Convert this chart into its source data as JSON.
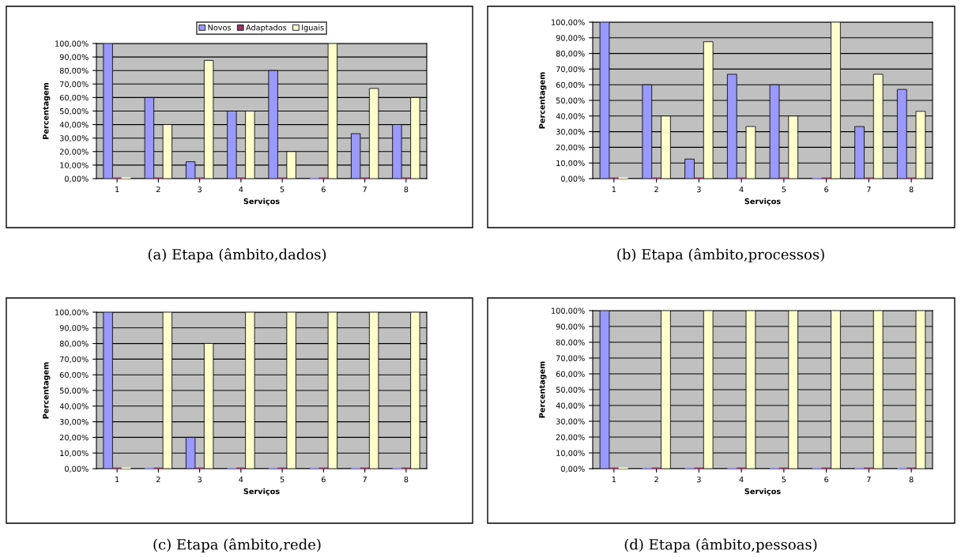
{
  "chart_data": [
    {
      "type": "bar",
      "categories": [
        "1",
        "2",
        "3",
        "4",
        "5",
        "6",
        "7",
        "8"
      ],
      "xlabel": "Serviços",
      "ylabel": "Percentagem",
      "ylim": [
        0,
        100
      ],
      "yticks": [
        {
          "value": 0,
          "label": "0,00%"
        },
        {
          "value": 10,
          "label": "10,00%"
        },
        {
          "value": 20,
          "label": "20,00%"
        },
        {
          "value": 30,
          "label": "30,00%"
        },
        {
          "value": 40,
          "label": "40,00%"
        },
        {
          "value": 50,
          "label": "50,00%"
        },
        {
          "value": 60,
          "label": "60,00%"
        },
        {
          "value": 70,
          "label": "70,00%"
        },
        {
          "value": 80,
          "label": "80,00%"
        },
        {
          "value": 90,
          "label": "90,00%"
        },
        {
          "value": 100,
          "label": "100,00%"
        }
      ],
      "grid": "y",
      "legend": "top",
      "annotations": [
        "(a) Etapa (âmbito,dados)"
      ],
      "series": [
        {
          "name": "Novos",
          "color": "#9999ff",
          "values": [
            100,
            60,
            12.5,
            50,
            80,
            0,
            33.3,
            40
          ]
        },
        {
          "name": "Adaptados",
          "color": "#993366",
          "values": [
            0,
            0,
            0,
            0,
            0,
            0,
            0,
            0
          ]
        },
        {
          "name": "Iguais",
          "color": "#ffffcc",
          "values": [
            0,
            40,
            87.5,
            50,
            20,
            100,
            66.7,
            60
          ]
        }
      ]
    },
    {
      "type": "bar",
      "categories": [
        "1",
        "2",
        "3",
        "4",
        "5",
        "6",
        "7",
        "8"
      ],
      "xlabel": "Serviços",
      "ylabel": "Percentagem",
      "ylim": [
        0,
        100
      ],
      "yticks": [
        {
          "value": 0,
          "label": "0,00%"
        },
        {
          "value": 10,
          "label": "10,00%"
        },
        {
          "value": 20,
          "label": "20,00%"
        },
        {
          "value": 30,
          "label": "30,00%"
        },
        {
          "value": 40,
          "label": "40,00%"
        },
        {
          "value": 50,
          "label": "50,00%"
        },
        {
          "value": 60,
          "label": "60,00%"
        },
        {
          "value": 70,
          "label": "70,00%"
        },
        {
          "value": 80,
          "label": "80,00%"
        },
        {
          "value": 90,
          "label": "90,00%"
        },
        {
          "value": 100,
          "label": "100,00%"
        }
      ],
      "grid": "y",
      "annotations": [
        "(b) Etapa (âmbito,processos)"
      ],
      "series": [
        {
          "color": "#9999ff",
          "values": [
            100,
            60,
            12.5,
            66.7,
            60,
            0,
            33.3,
            57
          ]
        },
        {
          "color": "#993366",
          "values": [
            0,
            0,
            0,
            0,
            0,
            0,
            0,
            0
          ]
        },
        {
          "color": "#ffffcc",
          "values": [
            0,
            40,
            87.5,
            33.3,
            40,
            100,
            66.7,
            43
          ]
        }
      ]
    },
    {
      "type": "bar",
      "categories": [
        "1",
        "2",
        "3",
        "4",
        "5",
        "6",
        "7",
        "8"
      ],
      "xlabel": "Serviços",
      "ylabel": "Percentagem",
      "ylim": [
        0,
        100
      ],
      "yticks": [
        {
          "value": 0,
          "label": "0,00%"
        },
        {
          "value": 10,
          "label": "10,00%"
        },
        {
          "value": 20,
          "label": "20,00%"
        },
        {
          "value": 30,
          "label": "30,00%"
        },
        {
          "value": 40,
          "label": "40,00%"
        },
        {
          "value": 50,
          "label": "50,00%"
        },
        {
          "value": 60,
          "label": "60,00%"
        },
        {
          "value": 70,
          "label": "70,00%"
        },
        {
          "value": 80,
          "label": "80,00%"
        },
        {
          "value": 90,
          "label": "90,00%"
        },
        {
          "value": 100,
          "label": "100,00%"
        }
      ],
      "grid": "y",
      "annotations": [
        "(c) Etapa (âmbito,rede)"
      ],
      "series": [
        {
          "color": "#9999ff",
          "values": [
            100,
            0,
            20,
            0,
            0,
            0,
            0,
            0
          ]
        },
        {
          "color": "#993366",
          "values": [
            0,
            0,
            0,
            0,
            0,
            0,
            0,
            0
          ]
        },
        {
          "color": "#ffffcc",
          "values": [
            0,
            100,
            80,
            100,
            100,
            100,
            100,
            100
          ]
        }
      ]
    },
    {
      "type": "bar",
      "categories": [
        "1",
        "2",
        "3",
        "4",
        "5",
        "6",
        "7",
        "8"
      ],
      "xlabel": "Serviços",
      "ylabel": "Percentagem",
      "ylim": [
        0,
        100
      ],
      "yticks": [
        {
          "value": 0,
          "label": "0,00%"
        },
        {
          "value": 10,
          "label": "10,00%"
        },
        {
          "value": 20,
          "label": "20,00%"
        },
        {
          "value": 30,
          "label": "30,00%"
        },
        {
          "value": 40,
          "label": "40,00%"
        },
        {
          "value": 50,
          "label": "50,00%"
        },
        {
          "value": 60,
          "label": "60,00%"
        },
        {
          "value": 70,
          "label": "70,00%"
        },
        {
          "value": 80,
          "label": "80,00%"
        },
        {
          "value": 90,
          "label": "90,00%"
        },
        {
          "value": 100,
          "label": "100,00%"
        }
      ],
      "grid": "y",
      "annotations": [
        "(d) Etapa (âmbito,pessoas)"
      ],
      "series": [
        {
          "color": "#9999ff",
          "values": [
            100,
            0,
            0,
            0,
            0,
            0,
            0,
            0
          ]
        },
        {
          "color": "#993366",
          "values": [
            0,
            0,
            0,
            0,
            0,
            0,
            0,
            0
          ]
        },
        {
          "color": "#ffffcc",
          "values": [
            0,
            100,
            100,
            100,
            100,
            100,
            100,
            100
          ]
        }
      ]
    }
  ]
}
